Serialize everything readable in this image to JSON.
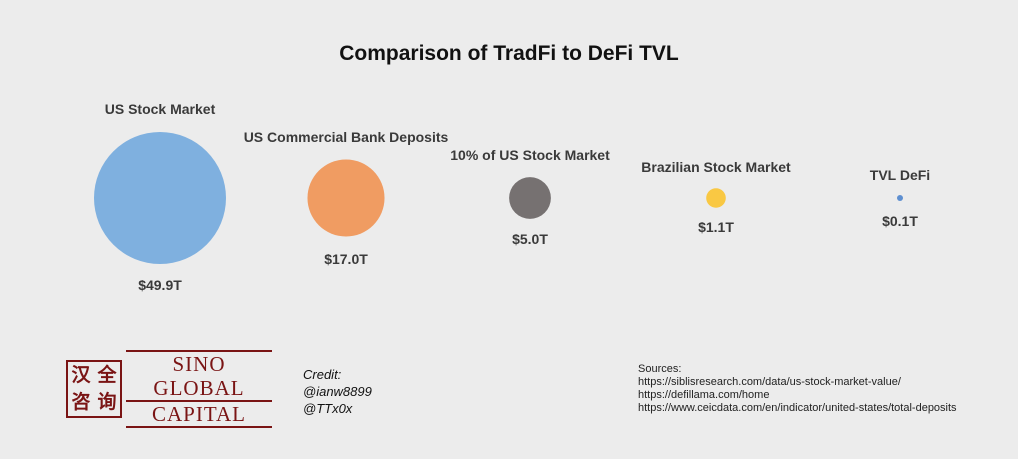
{
  "chart_data": {
    "type": "bubble",
    "title": "Comparison of TradFi to DeFi TVL",
    "unit": "T",
    "series": [
      {
        "name": "US Stock Market",
        "value": 49.9,
        "value_label": "$49.9T",
        "color": "#7fb0df"
      },
      {
        "name": "US Commercial Bank Deposits",
        "value": 17.0,
        "value_label": "$17.0T",
        "color": "#f09c62"
      },
      {
        "name": "10% of US Stock Market",
        "value": 5.0,
        "value_label": "$5.0T",
        "color": "#767171"
      },
      {
        "name": "Brazilian Stock Market",
        "value": 1.1,
        "value_label": "$1.1T",
        "color": "#f9c843"
      },
      {
        "name": "TVL DeFi",
        "value": 0.1,
        "value_label": "$0.1T",
        "color": "#5e8fd0"
      }
    ]
  },
  "logo": {
    "chars": [
      "汉",
      "全",
      "咨",
      "询"
    ],
    "line1": "SINO GLOBAL",
    "line2": "CAPITAL"
  },
  "credit": {
    "heading": "Credit:",
    "lines": [
      "@ianw8899",
      "@TTx0x"
    ]
  },
  "sources": {
    "heading": "Sources:",
    "lines": [
      "https://siblisresearch.com/data/us-stock-market-value/",
      "https://defillama.com/home",
      "https://www.ceicdata.com/en/indicator/united-states/total-deposits"
    ]
  }
}
